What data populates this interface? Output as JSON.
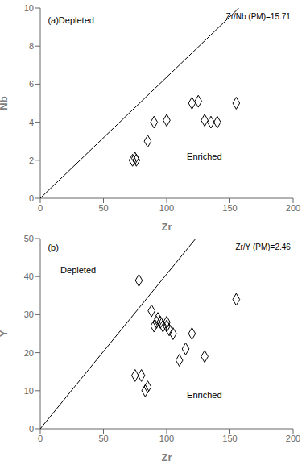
{
  "chart_data": [
    {
      "type": "scatter",
      "title": "Zr/Nb (PM)=15.71",
      "xlabel": "Zr",
      "ylabel": "Nb",
      "annotations": [
        "(a)Depleted",
        "Enriched"
      ],
      "xlim": [
        0,
        200
      ],
      "ylim": [
        0,
        10
      ],
      "xticks": [
        0,
        50,
        100,
        150,
        200
      ],
      "yticks": [
        0,
        2,
        4,
        6,
        8,
        10
      ],
      "series": [
        {
          "type": "line",
          "color": "black",
          "x": [
            0,
            157.1
          ],
          "values": [
            0,
            10
          ]
        },
        {
          "type": "scatter",
          "marker": "diamond",
          "color": "black",
          "x": [
            73,
            75,
            76,
            85,
            90,
            100,
            120,
            125,
            130,
            135,
            140,
            155
          ],
          "values": [
            2.0,
            2.1,
            2.0,
            3.0,
            4.0,
            4.1,
            5.0,
            5.1,
            4.1,
            4.0,
            4.0,
            5.0
          ]
        }
      ]
    },
    {
      "type": "scatter",
      "title": "Zr/Y (PM)=2.46",
      "xlabel": "Zr",
      "ylabel": "Y",
      "annotations": [
        "(b)",
        "Depleted",
        "Enriched"
      ],
      "xlim": [
        0,
        200
      ],
      "ylim": [
        0,
        50
      ],
      "xticks": [
        0,
        50,
        100,
        150,
        200
      ],
      "yticks": [
        0,
        10,
        20,
        30,
        40,
        50
      ],
      "series": [
        {
          "type": "line",
          "color": "black",
          "x": [
            0,
            123
          ],
          "values": [
            0,
            50
          ]
        },
        {
          "type": "scatter",
          "marker": "diamond",
          "color": "black",
          "x": [
            78,
            75,
            80,
            83,
            85,
            88,
            90,
            92,
            93,
            95,
            97,
            100,
            100,
            102,
            105,
            110,
            115,
            120,
            130,
            155
          ],
          "values": [
            39,
            14,
            14,
            10,
            11,
            31,
            27,
            28,
            29,
            28,
            27,
            28,
            27,
            26,
            25,
            18,
            21,
            25,
            19,
            34
          ]
        }
      ]
    }
  ]
}
